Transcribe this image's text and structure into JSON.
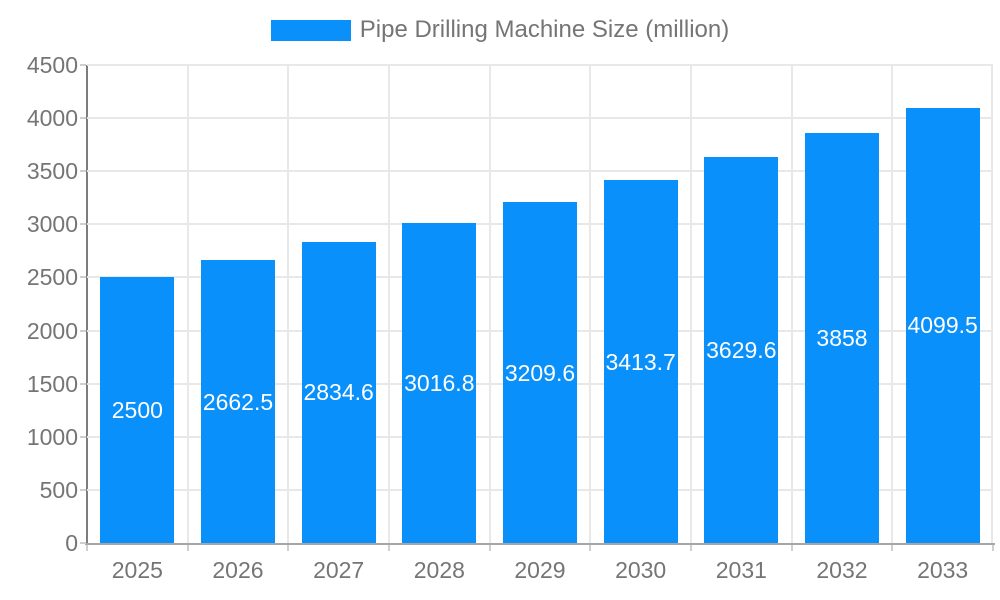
{
  "chart_data": {
    "type": "bar",
    "title": "Pipe Drilling Machine Size (million)",
    "categories": [
      "2025",
      "2026",
      "2027",
      "2028",
      "2029",
      "2030",
      "2031",
      "2032",
      "2033"
    ],
    "values": [
      2500,
      2662.5,
      2834.6,
      3016.8,
      3209.6,
      3413.7,
      3629.6,
      3858,
      4099.5
    ],
    "data_labels": [
      "2500",
      "2662.5",
      "2834.6",
      "3016.8",
      "3209.6",
      "3413.7",
      "3629.6",
      "3858",
      "4099.5"
    ],
    "yticks": [
      "0",
      "500",
      "1000",
      "1500",
      "2000",
      "2500",
      "3000",
      "3500",
      "4000",
      "4500"
    ],
    "ylim": [
      0,
      4500
    ],
    "xlabel": "",
    "ylabel": "",
    "grid": true,
    "legend_position": "top",
    "data_label_position": "center-of-bar",
    "colors": {
      "bar": "#0990fa",
      "grid": "#e8e8e8",
      "axis_y": "#7d7d7d",
      "axis_x": "#a6a6a6",
      "tick": "#cfcfcf",
      "tick_text": "#757575",
      "legend_text": "#757575",
      "data_label_text": "#ffffff",
      "background": "#ffffff"
    }
  }
}
